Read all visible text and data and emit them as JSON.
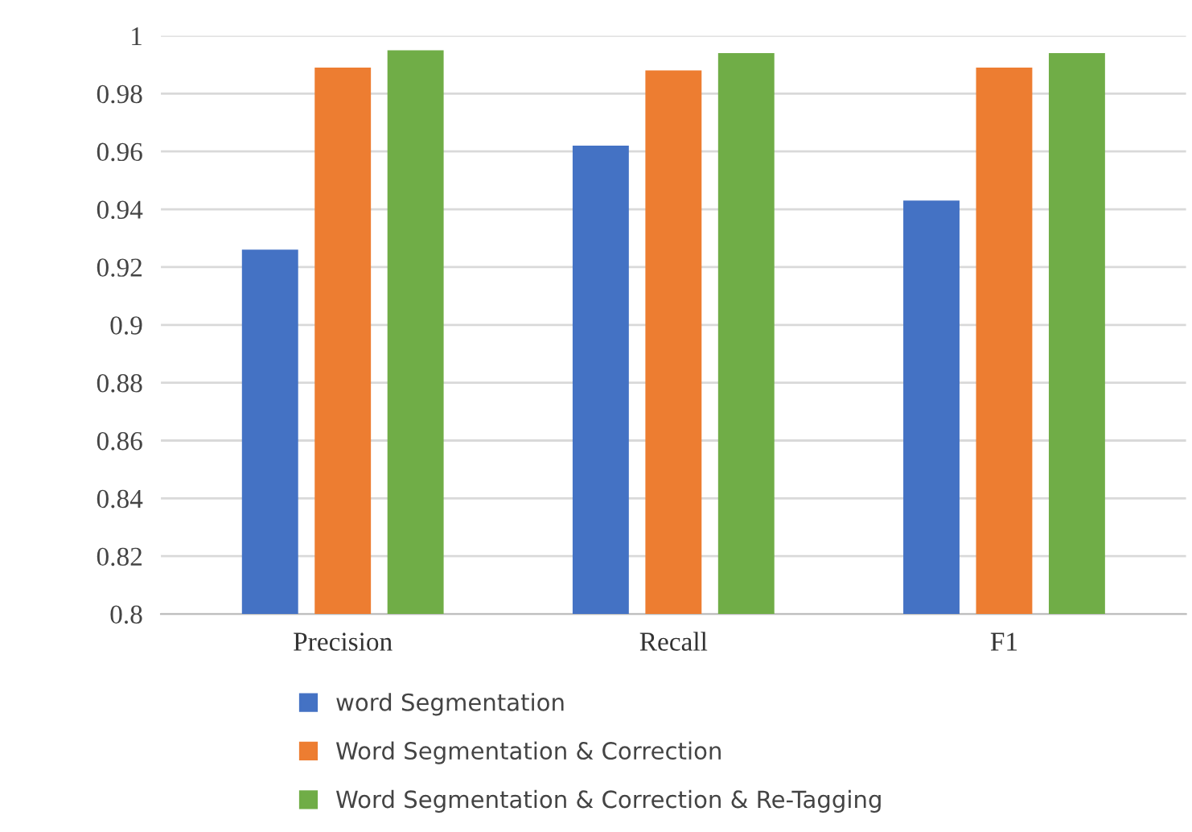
{
  "chart_data": {
    "type": "bar",
    "categories": [
      "Precision",
      "Recall",
      "F1"
    ],
    "series": [
      {
        "name": "word Segmentation",
        "color": "#4472c4",
        "values": [
          0.926,
          0.962,
          0.943
        ]
      },
      {
        "name": "Word Segmentation & Correction",
        "color": "#ed7d31",
        "values": [
          0.989,
          0.988,
          0.989
        ]
      },
      {
        "name": "Word Segmentation & Correction & Re-Tagging",
        "color": "#70ad47",
        "values": [
          0.995,
          0.994,
          0.994
        ]
      }
    ],
    "ylim": [
      0.8,
      1
    ],
    "yticks": [
      {
        "value": 0.8,
        "label": "0.8"
      },
      {
        "value": 0.82,
        "label": "0.82"
      },
      {
        "value": 0.84,
        "label": "0.84"
      },
      {
        "value": 0.86,
        "label": "0.86"
      },
      {
        "value": 0.88,
        "label": "0.88"
      },
      {
        "value": 0.9,
        "label": "0.9"
      },
      {
        "value": 0.92,
        "label": "0.92"
      },
      {
        "value": 0.94,
        "label": "0.94"
      },
      {
        "value": 0.96,
        "label": "0.96"
      },
      {
        "value": 0.98,
        "label": "0.98"
      },
      {
        "value": 1,
        "label": "1"
      }
    ],
    "grid": "y",
    "legend": "bottom"
  }
}
